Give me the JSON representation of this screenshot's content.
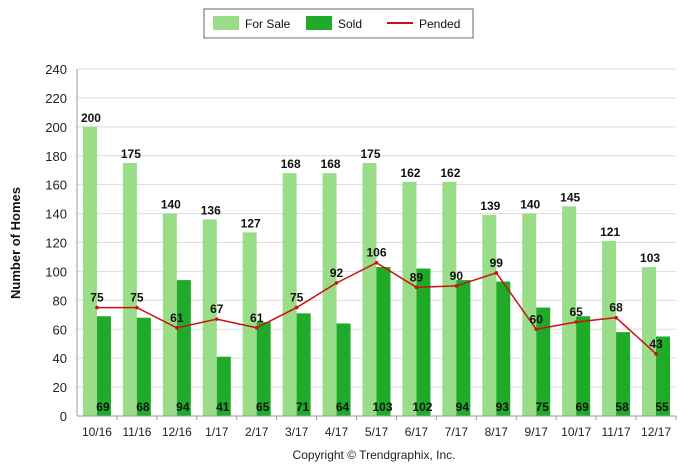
{
  "chart_data": {
    "type": "bar",
    "ylabel": "Number of Homes",
    "ylim": [
      0,
      240
    ],
    "yticks": [
      0,
      20,
      40,
      60,
      80,
      100,
      120,
      140,
      160,
      180,
      200,
      220,
      240
    ],
    "grid": true,
    "legend_position": "top-center",
    "categories": [
      "10/16",
      "11/16",
      "12/16",
      "1/17",
      "2/17",
      "3/17",
      "4/17",
      "5/17",
      "6/17",
      "7/17",
      "8/17",
      "9/17",
      "10/17",
      "11/17",
      "12/17"
    ],
    "series": [
      {
        "name": "For Sale",
        "kind": "bar",
        "color": "#99dd88",
        "values": [
          200,
          175,
          140,
          136,
          127,
          168,
          168,
          175,
          162,
          162,
          139,
          140,
          145,
          121,
          103
        ]
      },
      {
        "name": "Sold",
        "kind": "bar",
        "color": "#1faa2a",
        "values": [
          69,
          68,
          94,
          41,
          65,
          71,
          64,
          103,
          102,
          94,
          93,
          75,
          69,
          58,
          55
        ]
      },
      {
        "name": "Pended",
        "kind": "line",
        "color": "#cc1111",
        "values": [
          75,
          75,
          61,
          67,
          61,
          75,
          92,
          106,
          89,
          90,
          99,
          60,
          65,
          68,
          43
        ]
      }
    ]
  },
  "footer": {
    "copyright": "Copyright © Trendgraphix, Inc."
  }
}
